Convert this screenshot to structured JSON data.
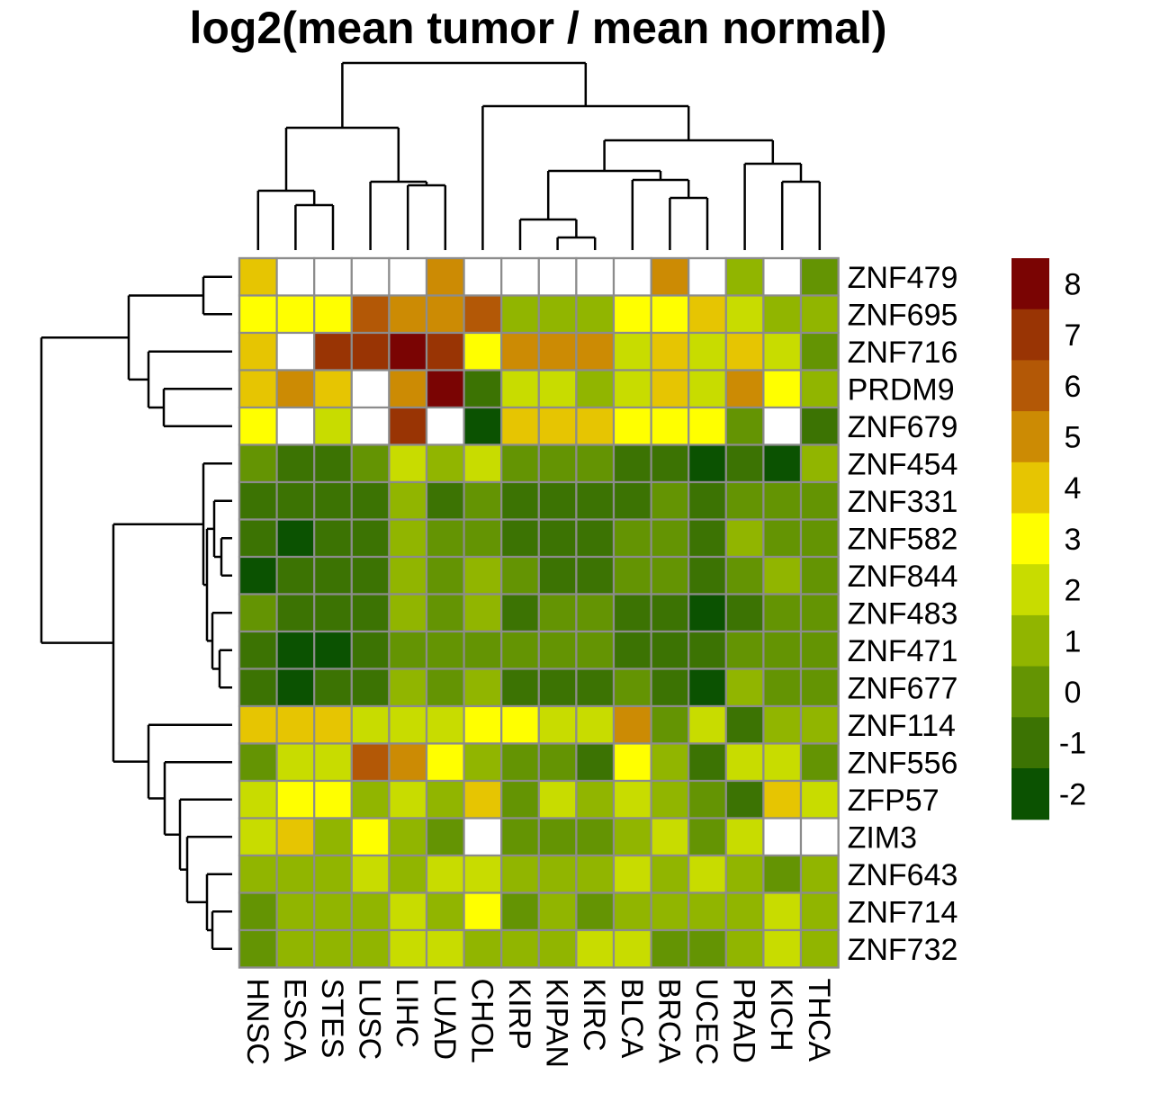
{
  "chart_data": {
    "type": "heatmap",
    "title": "log2(mean tumor / mean normal)",
    "columns": [
      "HNSC",
      "ESCA",
      "STES",
      "LUSC",
      "LIHC",
      "LUAD",
      "CHOL",
      "KIRP",
      "KIPAN",
      "KIRC",
      "BLCA",
      "BRCA",
      "UCEC",
      "PRAD",
      "KICH",
      "THCA"
    ],
    "rows": [
      "ZNF479",
      "ZNF695",
      "ZNF716",
      "PRDM9",
      "ZNF679",
      "ZNF454",
      "ZNF331",
      "ZNF582",
      "ZNF844",
      "ZNF483",
      "ZNF471",
      "ZNF677",
      "ZNF114",
      "ZNF556",
      "ZFP57",
      "ZIM3",
      "ZNF643",
      "ZNF714",
      "ZNF732"
    ],
    "values": [
      [
        3.5,
        null,
        null,
        null,
        null,
        4.5,
        null,
        null,
        null,
        null,
        null,
        4.5,
        null,
        0.5,
        null,
        -0.5
      ],
      [
        2.5,
        2.5,
        2.5,
        5.5,
        4.5,
        4.5,
        5.5,
        0.5,
        0.5,
        0.5,
        2.5,
        2.5,
        3.5,
        1.5,
        0.5,
        0.5
      ],
      [
        3.5,
        null,
        6.5,
        6.5,
        7.5,
        6.5,
        2.5,
        4.5,
        4.5,
        4.5,
        1.5,
        3.5,
        1.5,
        3.5,
        1.5,
        -0.5
      ],
      [
        3.5,
        4.5,
        3.5,
        null,
        4.5,
        7.5,
        -1.5,
        1.5,
        1.5,
        0.5,
        1.5,
        3.5,
        1.5,
        4.5,
        2.5,
        0.5
      ],
      [
        2.5,
        null,
        1.5,
        null,
        6.5,
        null,
        -2.5,
        3.5,
        3.5,
        3.5,
        2.5,
        2.5,
        2.5,
        -0.5,
        null,
        -1.5
      ],
      [
        -0.5,
        -1.5,
        -1.5,
        -0.5,
        1.5,
        0.5,
        1.5,
        -0.5,
        -0.5,
        -0.5,
        -1.5,
        -1.5,
        -2.5,
        -1.5,
        -2.5,
        0.5
      ],
      [
        -1.5,
        -1.5,
        -1.5,
        -1.5,
        0.5,
        -1.5,
        -0.5,
        -1.5,
        -1.5,
        -1.5,
        -1.5,
        -0.5,
        -1.5,
        -0.5,
        -0.5,
        -0.5
      ],
      [
        -1.5,
        -2.5,
        -1.5,
        -1.5,
        0.5,
        -0.5,
        -0.5,
        -1.5,
        -1.5,
        -1.5,
        -0.5,
        -0.5,
        -1.5,
        0.5,
        -0.5,
        -0.5
      ],
      [
        -2.5,
        -1.5,
        -1.5,
        -1.5,
        0.5,
        -0.5,
        0.5,
        -0.5,
        -1.5,
        -1.5,
        -0.5,
        -0.5,
        -1.5,
        -0.5,
        0.5,
        -0.5
      ],
      [
        -0.5,
        -1.5,
        -1.5,
        -1.5,
        0.5,
        -0.5,
        0.5,
        -1.5,
        -0.5,
        -0.5,
        -1.5,
        -1.5,
        -2.5,
        -1.5,
        -0.5,
        -0.5
      ],
      [
        -1.5,
        -2.5,
        -2.5,
        -1.5,
        -0.5,
        -0.5,
        -0.5,
        -0.5,
        -0.5,
        -0.5,
        -1.5,
        -1.5,
        -1.5,
        -0.5,
        -0.5,
        -0.5
      ],
      [
        -1.5,
        -2.5,
        -1.5,
        -1.5,
        0.5,
        -0.5,
        0.5,
        -1.5,
        -1.5,
        -1.5,
        -0.5,
        -1.5,
        -2.5,
        0.5,
        -0.5,
        -0.5
      ],
      [
        3.5,
        3.5,
        3.5,
        1.5,
        1.5,
        1.5,
        2.5,
        2.5,
        1.5,
        1.5,
        4.5,
        -0.5,
        1.5,
        -1.5,
        0.5,
        0.5
      ],
      [
        -0.5,
        1.5,
        1.5,
        5.5,
        4.5,
        2.5,
        0.5,
        -0.5,
        -0.5,
        -1.5,
        2.5,
        0.5,
        -1.5,
        1.5,
        1.5,
        -0.5
      ],
      [
        1.5,
        2.5,
        2.5,
        0.5,
        1.5,
        0.5,
        3.5,
        -0.5,
        1.5,
        0.5,
        1.5,
        0.5,
        -0.5,
        -1.5,
        3.5,
        1.5
      ],
      [
        1.5,
        3.5,
        0.5,
        2.5,
        0.5,
        -0.5,
        null,
        -0.5,
        -0.5,
        -0.5,
        0.5,
        1.5,
        -0.5,
        1.5,
        null,
        null
      ],
      [
        0.5,
        0.5,
        0.5,
        1.5,
        0.5,
        1.5,
        1.5,
        0.5,
        0.5,
        0.5,
        1.5,
        0.5,
        1.5,
        0.5,
        -0.5,
        0.5
      ],
      [
        -0.5,
        0.5,
        0.5,
        0.5,
        1.5,
        0.5,
        2.5,
        -0.5,
        0.5,
        -0.5,
        0.5,
        0.5,
        0.5,
        0.5,
        1.5,
        0.5
      ],
      [
        -0.5,
        0.5,
        0.5,
        0.5,
        1.5,
        1.5,
        0.5,
        0.5,
        0.5,
        1.5,
        1.5,
        -0.5,
        -0.5,
        0.5,
        1.5,
        0.5
      ]
    ],
    "legend": {
      "ticks": [
        "8",
        "7",
        "6",
        "5",
        "4",
        "3",
        "2",
        "1",
        "0",
        "-1",
        "-2"
      ],
      "breaks": [
        8,
        7,
        6,
        5,
        4,
        3,
        2,
        1,
        0,
        -1,
        -2,
        -3
      ],
      "colors": [
        "#7a0403",
        "#993404",
        "#b35806",
        "#cc8b04",
        "#e6c502",
        "#ffff00",
        "#c8dc00",
        "#91b500",
        "#649403",
        "#3c7303",
        "#0b5201"
      ]
    },
    "missing_color": "#ffffff",
    "grid_color": "#8c8c8c"
  }
}
